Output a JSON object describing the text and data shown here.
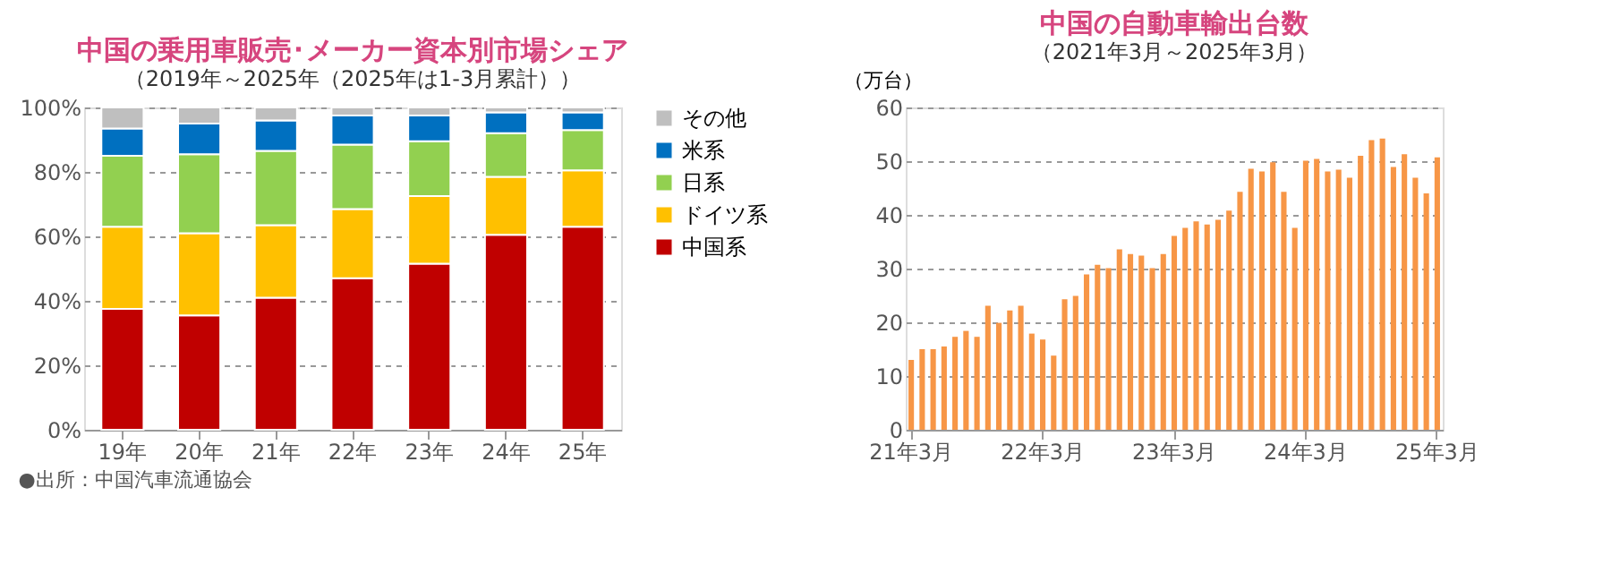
{
  "chart_data": [
    {
      "type": "bar",
      "title": "中国の乗用車販売･メーカー資本別市場シェア",
      "subtitle": "（2019年～2025年（2025年は1-3月累計））",
      "stacked": true,
      "legend": "right",
      "grid": "y",
      "categories": [
        "19年",
        "20年",
        "21年",
        "22年",
        "23年",
        "24年",
        "25年"
      ],
      "ylim": [
        0,
        100
      ],
      "yticks": [
        {
          "value": 0,
          "label": "0%"
        },
        {
          "value": 20,
          "label": "20%"
        },
        {
          "value": 40,
          "label": "40%"
        },
        {
          "value": 60,
          "label": "60%"
        },
        {
          "value": 80,
          "label": "80%"
        },
        {
          "value": 100,
          "label": "100%"
        }
      ],
      "series": [
        {
          "name": "中国系",
          "color": "#c00000",
          "values": [
            37.5,
            35.5,
            41,
            47,
            51.5,
            60.5,
            63
          ]
        },
        {
          "name": "ドイツ系",
          "color": "#ffc000",
          "values": [
            25.5,
            25.5,
            22.5,
            21.5,
            21,
            18,
            17.5
          ]
        },
        {
          "name": "日系",
          "color": "#92d050",
          "values": [
            22,
            24.5,
            23,
            20,
            17,
            13.5,
            12.5
          ]
        },
        {
          "name": "米系",
          "color": "#0070c0",
          "values": [
            8.5,
            9.5,
            9.5,
            9,
            8,
            6.5,
            5.5
          ]
        },
        {
          "name": "その他",
          "color": "#bfbfbf",
          "values": [
            6.5,
            5,
            4,
            2.5,
            2.5,
            1.5,
            1.5
          ]
        }
      ],
      "annotations": [
        "●出所：中国汽車流通協会"
      ]
    },
    {
      "type": "bar",
      "title": "中国の自動車輸出台数",
      "subtitle": "（2021年3月～2025年3月）",
      "ylabel": "（万台）",
      "grid": "y",
      "categories": [
        "21年3月",
        null,
        null,
        null,
        null,
        null,
        null,
        null,
        null,
        null,
        null,
        null,
        "22年3月",
        null,
        null,
        null,
        null,
        null,
        null,
        null,
        null,
        null,
        null,
        null,
        "23年3月",
        null,
        null,
        null,
        null,
        null,
        null,
        null,
        null,
        null,
        null,
        null,
        "24年3月",
        null,
        null,
        null,
        null,
        null,
        null,
        null,
        null,
        null,
        null,
        null,
        "25年3月"
      ],
      "ylim": [
        0,
        60
      ],
      "yticks": [
        0,
        10,
        20,
        30,
        40,
        50,
        60
      ],
      "series": [
        {
          "color": "#f79646",
          "values": [
            13,
            15,
            15,
            15.5,
            17.3,
            18.4,
            17.3,
            23.1,
            19.9,
            22.2,
            23.1,
            17.9,
            16.8,
            13.8,
            24.3,
            24.9,
            28.9,
            30.7,
            30.1,
            33.6,
            32.7,
            32.4,
            30.1,
            32.7,
            36.1,
            37.6,
            38.8,
            38.2,
            39.1,
            40.8,
            44.3,
            48.6,
            48.1,
            49.8,
            44.3,
            37.6,
            50.1,
            50.4,
            48.1,
            48.4,
            46.9,
            51.0,
            53.9,
            54.2,
            48.9,
            51.3,
            46.9,
            44.0,
            50.7
          ]
        }
      ]
    }
  ]
}
